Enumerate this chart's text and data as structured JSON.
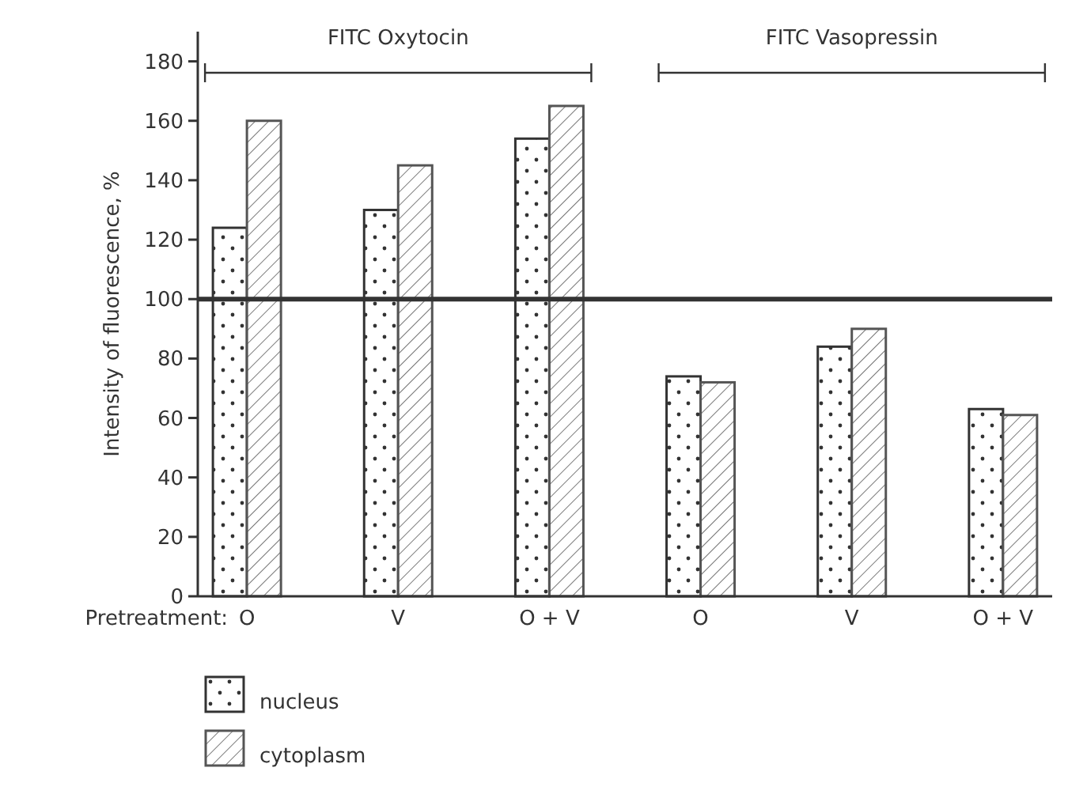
{
  "chart_data": {
    "type": "bar",
    "ylabel": "Intensity of fluorescence, %",
    "xlabel": "Pretreatment:",
    "categories": [
      "O",
      "V",
      "O + V",
      "O",
      "V",
      "O + V"
    ],
    "series": [
      {
        "name": "nucleus",
        "color": "#333333",
        "values": [
          124,
          130,
          154,
          74,
          84,
          63
        ]
      },
      {
        "name": "cytoplasm",
        "color": "#555555",
        "values": [
          160,
          145,
          165,
          72,
          90,
          61
        ]
      }
    ],
    "ylim": [
      0,
      190
    ],
    "yticks": [
      0,
      20,
      40,
      60,
      80,
      100,
      120,
      140,
      160,
      180
    ],
    "ref_lines": [
      {
        "axis": "y",
        "value": 100,
        "color": "#333333"
      }
    ],
    "annotations": [
      "FITC Oxytocin",
      "FITC Vasopressin"
    ],
    "legend": "bottom",
    "grid": false
  }
}
